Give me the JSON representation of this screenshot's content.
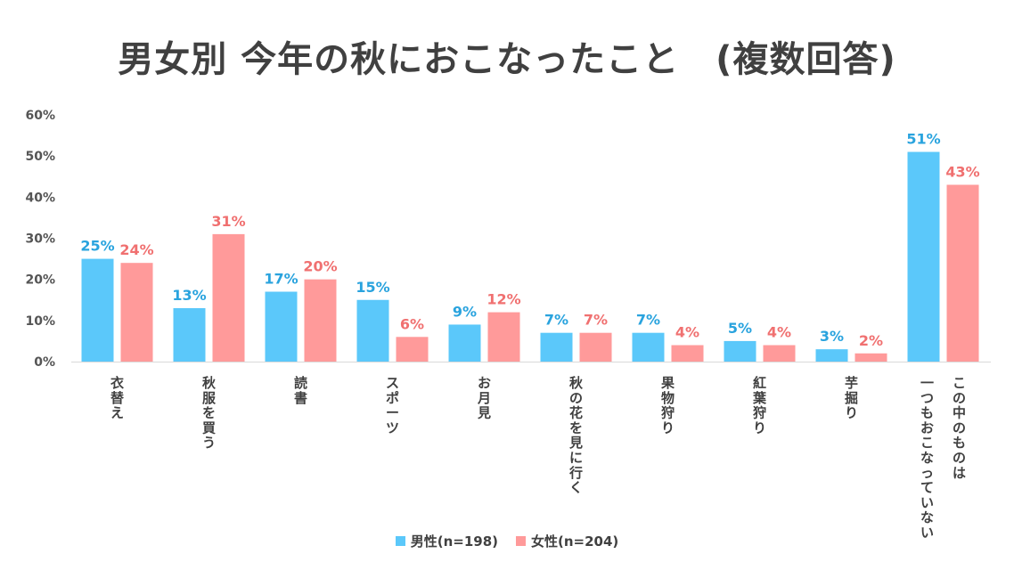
{
  "title": "男女別  今年の秋におこなったこと　(複数回答)",
  "chart_data": {
    "type": "bar",
    "title": "男女別  今年の秋におこなったこと　(複数回答)",
    "categories": [
      "衣替え",
      "秋服を買う",
      "読書",
      "スポーツ",
      "お月見",
      "秋の花を見に行く",
      "果物狩り",
      "紅葉狩り",
      "芋掘り",
      "一つもおこなっていない｜この中のものは"
    ],
    "category_lines": [
      [
        "衣替え"
      ],
      [
        "秋服を買う"
      ],
      [
        "読書"
      ],
      [
        "スポーツ"
      ],
      [
        "お月見"
      ],
      [
        "秋の花を見に行く"
      ],
      [
        "果物狩り"
      ],
      [
        "紅葉狩り"
      ],
      [
        "芋掘り"
      ],
      [
        "一つもおこなっていない",
        "この中のものは"
      ]
    ],
    "series": [
      {
        "name": "男性(n=198)",
        "color": "#5BC8FA",
        "label_color": "#29A3DE",
        "values": [
          25,
          13,
          17,
          15,
          9,
          7,
          7,
          5,
          3,
          51
        ],
        "labels": [
          "25%",
          "13%",
          "17%",
          "15%",
          "9%",
          "7%",
          "7%",
          "5%",
          "3%",
          "51%"
        ]
      },
      {
        "name": "女性(n=204)",
        "color": "#FF9A9A",
        "label_color": "#F07070",
        "values": [
          24,
          31,
          20,
          6,
          12,
          7,
          4,
          4,
          2,
          43
        ],
        "labels": [
          "24%",
          "31%",
          "20%",
          "6%",
          "12%",
          "7%",
          "4%",
          "4%",
          "2%",
          "43%"
        ]
      }
    ],
    "ylim": [
      0,
      60
    ],
    "yticks": [
      "0%",
      "10%",
      "20%",
      "30%",
      "40%",
      "50%",
      "60%"
    ],
    "grid": false,
    "legend": "bottom"
  }
}
